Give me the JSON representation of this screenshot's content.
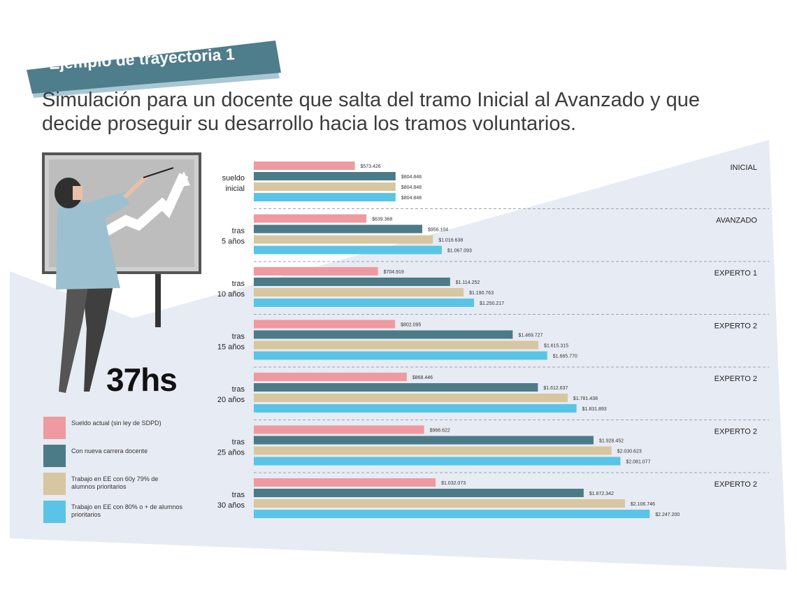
{
  "header": {
    "banner": "Ejemplo de trayectoria 1",
    "subtitle_line1": "Simulación para un docente que salta del tramo Inicial al Avanzado y que",
    "subtitle_line2": "decide proseguir su desarrollo hacia los tramos voluntarios."
  },
  "hours_label": "37hs",
  "colors": {
    "banner": "#4e7d8c",
    "banner_shadow": "#a9c7d3",
    "background_panel": "#e7ebf3",
    "series": [
      "#ef9aa0",
      "#4c7b88",
      "#d8c6a0",
      "#5ac4e6"
    ]
  },
  "legend": [
    {
      "label": "Sueldo actual (sin ley de SDPD)"
    },
    {
      "label": "Con nueva carrera docente"
    },
    {
      "label": "Trabajo en EE con 60y 79% de alumnos prioritarios"
    },
    {
      "label": "Trabajo en EE con 80% o + de alumnos prioritarios"
    }
  ],
  "chart_data": {
    "type": "bar",
    "orientation": "horizontal",
    "series": [
      {
        "name": "Sueldo actual (sin ley de SDPD)",
        "values": [
          573426,
          639368,
          704919,
          802095,
          868446,
          966622,
          1032073
        ]
      },
      {
        "name": "Con nueva carrera docente",
        "values": [
          804848,
          956104,
          1114252,
          1469727,
          1612637,
          1928452,
          1872342
        ]
      },
      {
        "name": "Trabajo en EE con 60y 79% de alumnos prioritarios",
        "values": [
          804848,
          1016638,
          1190763,
          1615315,
          1781438,
          2030623,
          2106746
        ]
      },
      {
        "name": "Trabajo en EE con 80% o + de alumnos prioritarios",
        "values": [
          804848,
          1067093,
          1250217,
          1665770,
          1831893,
          2081077,
          2247200
        ]
      }
    ],
    "value_labels": [
      [
        "$573.426",
        "$804.848",
        "$804.848",
        "$804.848"
      ],
      [
        "$639.368",
        "$956.104",
        "$1.016.638",
        "$1.067.093"
      ],
      [
        "$704.919",
        "$1.114.252",
        "$1.190.763",
        "$1.250.217"
      ],
      [
        "$802.095",
        "$1.469.727",
        "$1.615.315",
        "$1.665.770"
      ],
      [
        "$868.446",
        "$1.612.637",
        "$1.781.438",
        "$1.831.893"
      ],
      [
        "$966.622",
        "$1.928.452",
        "$2.030.623",
        "$2.081.077"
      ],
      [
        "$1.032.073",
        "$1.872.342",
        "$2.106.746",
        "$2.247.200"
      ]
    ],
    "groups": [
      {
        "label_lines": [
          "sueldo",
          "inicial"
        ],
        "tier": "INICIAL"
      },
      {
        "label_lines": [
          "tras",
          "5 años"
        ],
        "tier": "AVANZADO"
      },
      {
        "label_lines": [
          "tras",
          "10 años"
        ],
        "tier": "EXPERTO 1"
      },
      {
        "label_lines": [
          "tras",
          "15 años"
        ],
        "tier": "EXPERTO 2"
      },
      {
        "label_lines": [
          "tras",
          "20 años"
        ],
        "tier": "EXPERTO 2"
      },
      {
        "label_lines": [
          "tras",
          "25 años"
        ],
        "tier": "EXPERTO 2"
      },
      {
        "label_lines": [
          "tras",
          "30 años"
        ],
        "tier": "EXPERTO 2"
      }
    ],
    "xlim": [
      0,
      2250000
    ]
  }
}
